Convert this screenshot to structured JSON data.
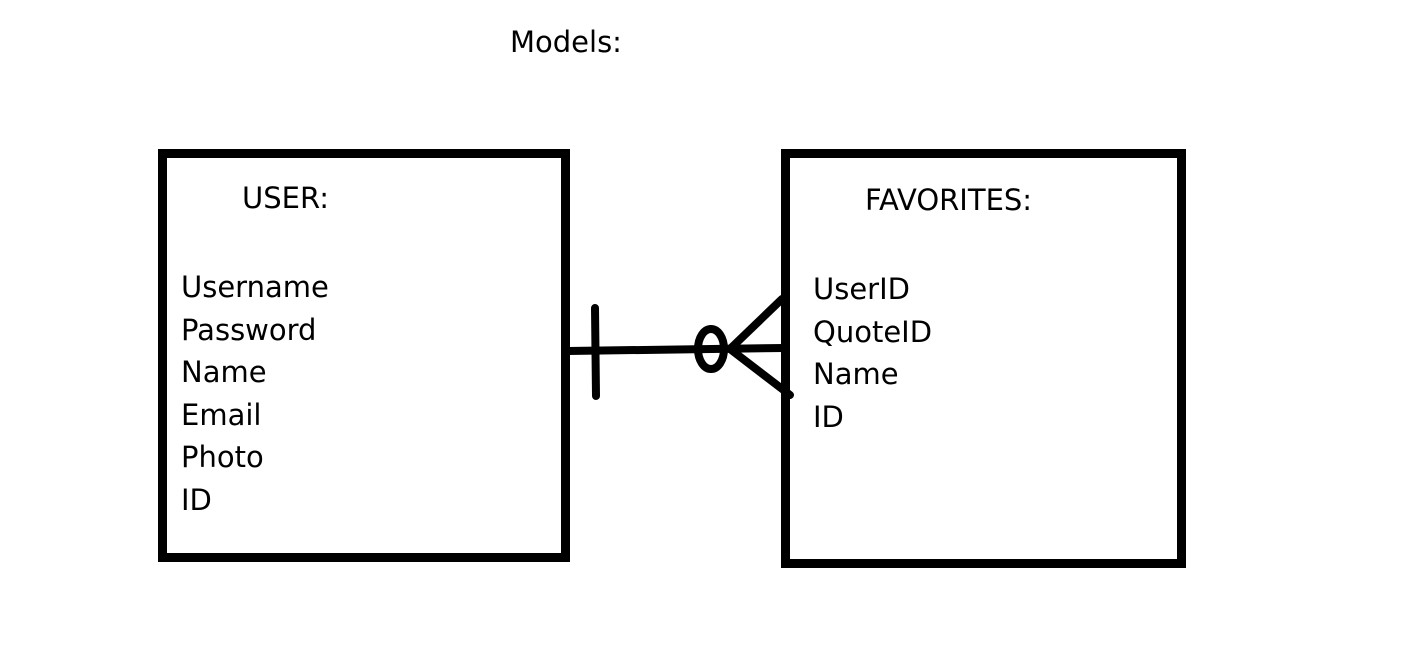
{
  "diagram": {
    "title": "Models:",
    "entities": [
      {
        "name": "USER:",
        "fields": [
          "Username",
          "Password",
          "Name",
          "Email",
          "Photo",
          "ID"
        ]
      },
      {
        "name": "FAVORITES:",
        "fields": [
          "UserID",
          "QuoteID",
          "Name",
          "ID"
        ]
      }
    ],
    "relationship": {
      "from": "USER:",
      "to": "FAVORITES:",
      "from_end": "one",
      "to_end": "zero-or-many"
    },
    "colors": {
      "stroke": "#000000",
      "background": "#ffffff"
    }
  }
}
